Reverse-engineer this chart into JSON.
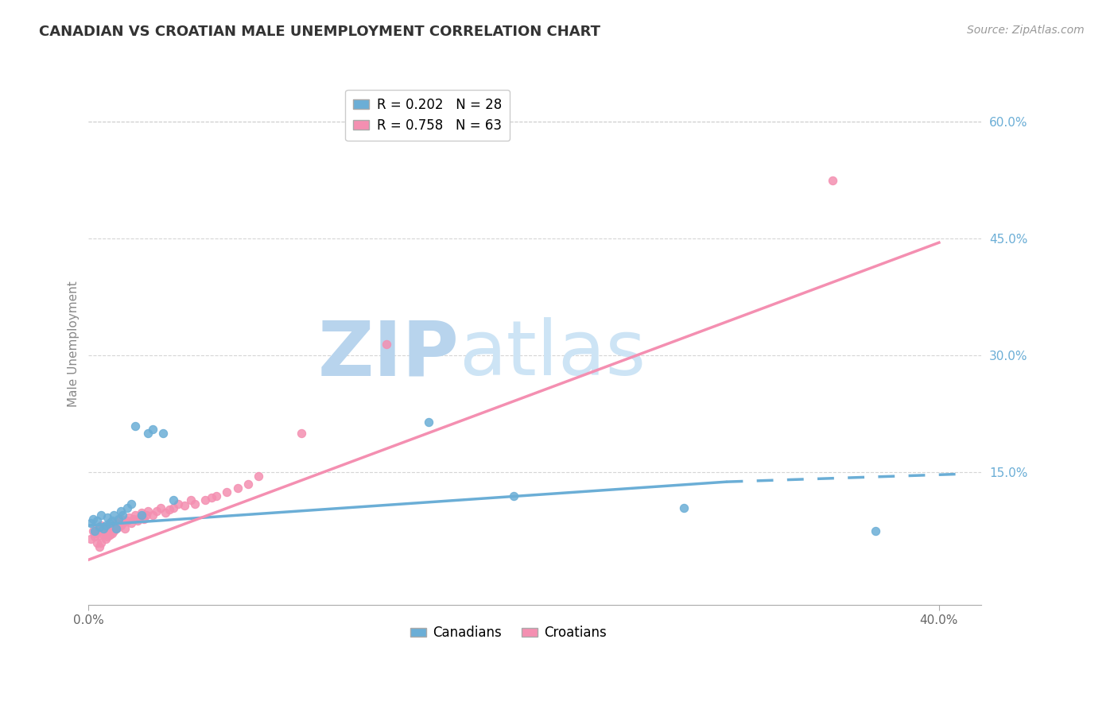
{
  "title": "CANADIAN VS CROATIAN MALE UNEMPLOYMENT CORRELATION CHART",
  "source_text": "Source: ZipAtlas.com",
  "ylabel": "Male Unemployment",
  "watermark_zip": "ZIP",
  "watermark_atlas": "atlas",
  "xlim": [
    0.0,
    0.42
  ],
  "ylim": [
    -0.02,
    0.65
  ],
  "ytick_positions": [
    0.15,
    0.3,
    0.45,
    0.6
  ],
  "ytick_labels": [
    "15.0%",
    "30.0%",
    "45.0%",
    "60.0%"
  ],
  "canadian_color": "#6baed6",
  "croatian_color": "#f48fb1",
  "canadian_R": 0.202,
  "canadian_N": 28,
  "croatian_R": 0.758,
  "croatian_N": 63,
  "can_line_x0": 0.0,
  "can_line_y0": 0.082,
  "can_line_x1": 0.3,
  "can_line_y1": 0.138,
  "can_line_dash_x1": 0.41,
  "can_line_dash_y1": 0.148,
  "cro_line_x0": 0.0,
  "cro_line_y0": 0.038,
  "cro_line_x1": 0.4,
  "cro_line_y1": 0.445,
  "canadians_x": [
    0.001,
    0.002,
    0.003,
    0.004,
    0.005,
    0.006,
    0.007,
    0.008,
    0.009,
    0.01,
    0.011,
    0.012,
    0.013,
    0.014,
    0.015,
    0.016,
    0.018,
    0.02,
    0.022,
    0.025,
    0.028,
    0.03,
    0.035,
    0.04,
    0.16,
    0.2,
    0.28,
    0.37
  ],
  "canadians_y": [
    0.085,
    0.09,
    0.075,
    0.088,
    0.08,
    0.095,
    0.078,
    0.082,
    0.092,
    0.085,
    0.088,
    0.095,
    0.078,
    0.09,
    0.1,
    0.095,
    0.105,
    0.11,
    0.21,
    0.095,
    0.2,
    0.205,
    0.2,
    0.115,
    0.215,
    0.12,
    0.105,
    0.075
  ],
  "croatians_x": [
    0.001,
    0.002,
    0.003,
    0.003,
    0.004,
    0.004,
    0.005,
    0.005,
    0.005,
    0.006,
    0.006,
    0.006,
    0.007,
    0.007,
    0.008,
    0.008,
    0.008,
    0.009,
    0.009,
    0.01,
    0.01,
    0.011,
    0.011,
    0.012,
    0.012,
    0.013,
    0.013,
    0.014,
    0.015,
    0.015,
    0.016,
    0.017,
    0.018,
    0.019,
    0.02,
    0.021,
    0.022,
    0.023,
    0.024,
    0.025,
    0.026,
    0.027,
    0.028,
    0.03,
    0.032,
    0.034,
    0.036,
    0.038,
    0.04,
    0.042,
    0.045,
    0.048,
    0.05,
    0.055,
    0.058,
    0.06,
    0.065,
    0.07,
    0.075,
    0.08,
    0.1,
    0.14,
    0.35
  ],
  "croatians_y": [
    0.065,
    0.075,
    0.068,
    0.072,
    0.06,
    0.078,
    0.055,
    0.07,
    0.08,
    0.06,
    0.075,
    0.082,
    0.07,
    0.078,
    0.065,
    0.072,
    0.08,
    0.068,
    0.075,
    0.07,
    0.078,
    0.072,
    0.08,
    0.075,
    0.082,
    0.078,
    0.085,
    0.08,
    0.082,
    0.09,
    0.085,
    0.078,
    0.088,
    0.092,
    0.085,
    0.09,
    0.095,
    0.088,
    0.092,
    0.098,
    0.09,
    0.095,
    0.1,
    0.095,
    0.1,
    0.105,
    0.098,
    0.102,
    0.105,
    0.11,
    0.108,
    0.115,
    0.11,
    0.115,
    0.118,
    0.12,
    0.125,
    0.13,
    0.135,
    0.145,
    0.2,
    0.315,
    0.525
  ],
  "title_fontsize": 13,
  "axis_label_fontsize": 11,
  "tick_fontsize": 11,
  "legend_fontsize": 12,
  "watermark_fontsize": 70,
  "watermark_color": "#cde4f5",
  "grid_color": "#cccccc",
  "background_color": "#ffffff"
}
